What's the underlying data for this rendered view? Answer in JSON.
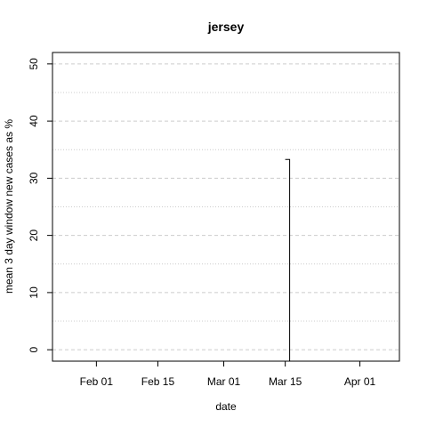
{
  "chart_data": {
    "type": "line",
    "title": "jersey",
    "xlabel": "date",
    "ylabel": "mean  3  day window new cases as %",
    "x_ticks": [
      "Feb 01",
      "Feb 15",
      "Mar 01",
      "Mar 15",
      "Apr 01"
    ],
    "x_tick_dates": [
      "2020-02-01",
      "2020-02-15",
      "2020-03-01",
      "2020-03-15",
      "2020-04-01"
    ],
    "xlim": [
      "2020-01-22",
      "2020-04-10"
    ],
    "y_ticks": [
      0,
      10,
      20,
      30,
      40,
      50
    ],
    "ylim": [
      -2,
      52
    ],
    "grid": "dashed horizontal major, dotted horizontal minor",
    "series": [
      {
        "x": [
          "2020-01-22",
          "2020-01-22"
        ],
        "y": [
          50,
          52
        ]
      },
      {
        "x": [
          "2020-03-15",
          "2020-03-16",
          "2020-03-16"
        ],
        "y": [
          33.3,
          33.3,
          -2
        ]
      }
    ],
    "colors": {
      "line": "#000000",
      "grid": "#cccccc",
      "frame": "#000000"
    }
  }
}
